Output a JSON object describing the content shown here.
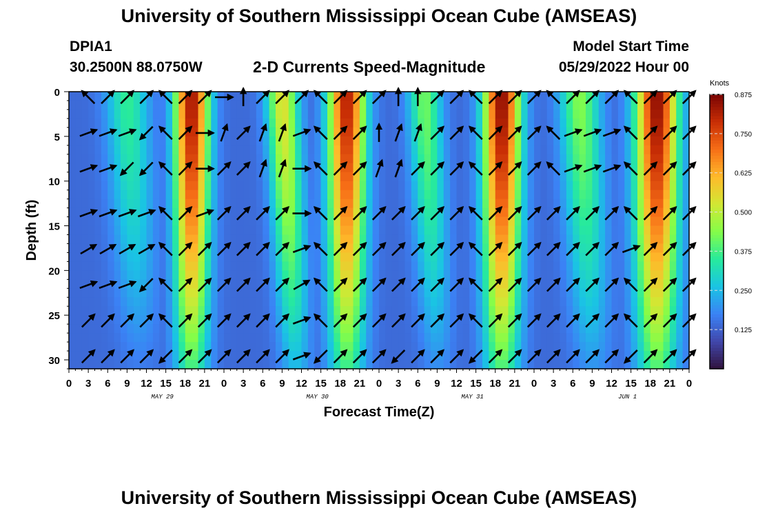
{
  "header": {
    "title": "University of Southern Mississippi Ocean Cube (AMSEAS)",
    "station_id": "DPIA1",
    "station_coords": "30.2500N  88.0750W",
    "plot_title": "2-D Currents Speed-Magnitude",
    "model_start_label": "Model Start Time",
    "model_start_value": "05/29/2022 Hour 00"
  },
  "footer": {
    "title": "University of Southern Mississippi Ocean Cube (AMSEAS)"
  },
  "chart_data": {
    "type": "heatmap",
    "title": "2-D Currents Speed-Magnitude",
    "xlabel": "Forecast Time(Z)",
    "ylabel": "Depth (ft)",
    "x_ticks": [
      "0",
      "3",
      "6",
      "9",
      "12",
      "15",
      "18",
      "21",
      "0",
      "3",
      "6",
      "9",
      "12",
      "15",
      "18",
      "21",
      "0",
      "3",
      "6",
      "9",
      "12",
      "15",
      "18",
      "21",
      "0",
      "3",
      "6",
      "9",
      "12",
      "15",
      "18",
      "21",
      "0"
    ],
    "date_labels": [
      {
        "text": "MAY 29",
        "hour": 15
      },
      {
        "text": "MAY 30",
        "hour": 39
      },
      {
        "text": "MAY 31",
        "hour": 63
      },
      {
        "text": "JUN 1",
        "hour": 87
      }
    ],
    "xlim": [
      0,
      96
    ],
    "ylim": [
      0,
      31
    ],
    "y_ticks": [
      0,
      5,
      10,
      15,
      20,
      25,
      30
    ],
    "colorbar": {
      "label": "Knots",
      "range": [
        0.0,
        0.875
      ],
      "ticks": [
        "0.875",
        "0.750",
        "0.625",
        "0.500",
        "0.375",
        "0.250",
        "0.125"
      ],
      "tick_values": [
        0.875,
        0.75,
        0.625,
        0.5,
        0.375,
        0.25,
        0.125
      ]
    },
    "speed_peaks": [
      {
        "hour": 2,
        "speed": 0.1,
        "width": 2.0,
        "deep_shift": 0
      },
      {
        "hour": 9,
        "speed": 0.36,
        "width": 3.2,
        "deep_shift": 2
      },
      {
        "hour": 19,
        "speed": 0.84,
        "width": 2.6,
        "deep_shift": 0
      },
      {
        "hour": 33,
        "speed": 0.55,
        "width": 2.4,
        "deep_shift": 2
      },
      {
        "hour": 43,
        "speed": 0.82,
        "width": 2.8,
        "deep_shift": 0
      },
      {
        "hour": 55,
        "speed": 0.42,
        "width": 2.5,
        "deep_shift": 2
      },
      {
        "hour": 67,
        "speed": 0.86,
        "width": 2.8,
        "deep_shift": 0
      },
      {
        "hour": 79,
        "speed": 0.44,
        "width": 3.0,
        "deep_shift": 2
      },
      {
        "hour": 91,
        "speed": 0.86,
        "width": 3.2,
        "deep_shift": 0
      }
    ],
    "vector_hours": [
      3,
      6,
      9,
      12,
      15,
      18,
      21,
      24,
      27,
      30,
      33,
      36,
      39,
      42,
      45,
      48,
      51,
      54,
      57,
      60,
      63,
      66,
      69,
      72,
      75,
      78,
      81,
      84,
      87,
      90,
      93,
      96
    ],
    "vector_depths": [
      0,
      4,
      8,
      13,
      17,
      21,
      25,
      29
    ],
    "vector_directions_deg": [
      [
        -135,
        -45,
        -45,
        -45,
        -135,
        -45,
        -45,
        0,
        -90,
        -45,
        -45,
        -45,
        -135,
        -45,
        -45,
        -45,
        -90,
        -90,
        -45,
        -45,
        -135,
        -45,
        -45,
        -45,
        -135,
        -45,
        -45,
        -45,
        -135,
        -45,
        -45,
        -45
      ],
      [
        -20,
        -20,
        -20,
        135,
        -135,
        -45,
        0,
        -70,
        -45,
        -70,
        -70,
        -20,
        -135,
        -45,
        -45,
        -90,
        -70,
        -70,
        -45,
        -45,
        -135,
        -45,
        -45,
        -45,
        -135,
        -20,
        -20,
        -20,
        -135,
        -45,
        -45,
        -45
      ],
      [
        -20,
        -20,
        135,
        135,
        -135,
        -45,
        0,
        -45,
        -45,
        -70,
        -70,
        0,
        -135,
        -45,
        -45,
        -70,
        -70,
        -45,
        -45,
        -45,
        -135,
        -45,
        -45,
        -45,
        -135,
        -20,
        -20,
        -20,
        -135,
        -45,
        -45,
        -45
      ],
      [
        -20,
        -20,
        -20,
        -20,
        -135,
        -45,
        -20,
        -45,
        -45,
        -45,
        -45,
        0,
        -135,
        -45,
        -45,
        -45,
        -45,
        -45,
        -45,
        -45,
        -135,
        -45,
        -45,
        -45,
        -45,
        -45,
        -45,
        -45,
        -135,
        -45,
        -45,
        -45
      ],
      [
        -30,
        -30,
        -30,
        -30,
        -135,
        -45,
        -45,
        -45,
        -45,
        -45,
        -45,
        -20,
        -135,
        -45,
        -45,
        -45,
        -45,
        -45,
        -45,
        -45,
        -135,
        -45,
        -45,
        -45,
        -45,
        -45,
        -45,
        -45,
        -20,
        -45,
        -45,
        -45
      ],
      [
        -20,
        -20,
        -20,
        135,
        -135,
        -45,
        -45,
        -45,
        -45,
        -45,
        -45,
        -30,
        -135,
        -45,
        -45,
        -45,
        -45,
        -45,
        -45,
        -45,
        -135,
        -45,
        -45,
        -45,
        -45,
        -45,
        -45,
        -45,
        -135,
        -45,
        -45,
        -45
      ],
      [
        -45,
        -45,
        -45,
        -45,
        -135,
        -45,
        -45,
        -45,
        -45,
        -45,
        -45,
        -20,
        -135,
        -45,
        -45,
        -45,
        -45,
        -45,
        -45,
        -45,
        -135,
        -45,
        -45,
        -45,
        -45,
        -45,
        -45,
        -45,
        -135,
        -45,
        -45,
        -45
      ],
      [
        -45,
        -45,
        -45,
        -45,
        135,
        -45,
        -45,
        -45,
        -45,
        -45,
        -45,
        -20,
        135,
        -45,
        -45,
        -45,
        135,
        -45,
        -45,
        -45,
        135,
        -45,
        -45,
        -45,
        -45,
        -45,
        -45,
        -45,
        135,
        -45,
        -45,
        -45
      ]
    ]
  }
}
